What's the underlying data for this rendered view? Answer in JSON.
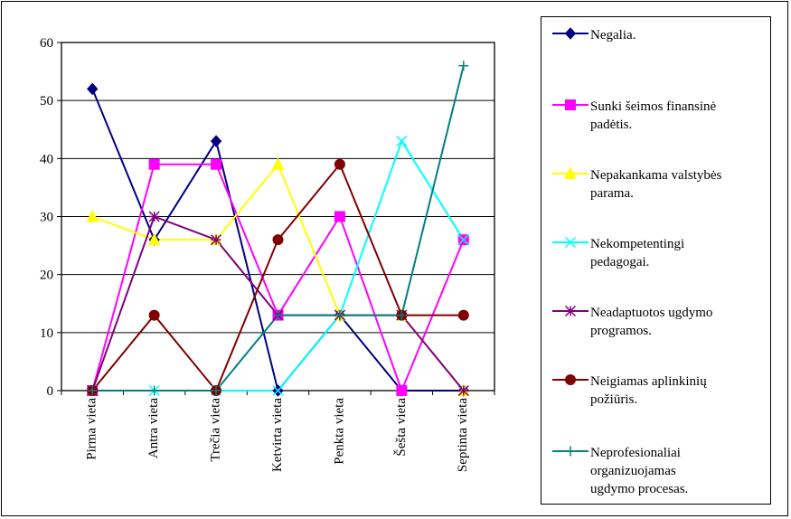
{
  "chart_data": {
    "type": "line",
    "categories": [
      "Pirma vieta",
      "Antra vieta",
      "Trečia vieta",
      "Ketvirta vieta",
      "Penkta vieta",
      "Šešta vieta",
      "Septinta vieta"
    ],
    "ylim": [
      0,
      60
    ],
    "yticks": [
      "0",
      "10",
      "20",
      "30",
      "40",
      "50",
      "60"
    ],
    "grid": true,
    "legend_position": "right",
    "series": [
      {
        "name": "Negalia.",
        "color": "#000080",
        "marker": "diamond",
        "values": [
          52,
          26,
          43,
          0,
          13,
          0,
          0
        ]
      },
      {
        "name": "Sunki šeimos finansinė padėtis.",
        "color": "#ff00ff",
        "marker": "square",
        "values": [
          0,
          39,
          39,
          13,
          30,
          0,
          26
        ]
      },
      {
        "name": "Nepakankama valstybės parama.",
        "color": "#ffff00",
        "marker": "triangle",
        "values": [
          30,
          26,
          26,
          39,
          13,
          13,
          0
        ]
      },
      {
        "name": "Nekompetentingi pedagogai.",
        "color": "#00ffff",
        "marker": "x",
        "values": [
          0,
          0,
          0,
          0,
          13,
          43,
          26
        ]
      },
      {
        "name": "Neadaptuotos ugdymo programos.",
        "color": "#800080",
        "marker": "star",
        "values": [
          0,
          30,
          26,
          13,
          13,
          13,
          0
        ]
      },
      {
        "name": "Neigiamas aplinkinių požiūris.",
        "color": "#800000",
        "marker": "circle",
        "values": [
          0,
          13,
          0,
          26,
          39,
          13,
          13
        ]
      },
      {
        "name": "Neprofesionaliai organizuojamas ugdymo procesas.",
        "color": "#008080",
        "marker": "plus",
        "values": [
          0,
          0,
          0,
          13,
          13,
          13,
          56
        ]
      }
    ]
  },
  "legend": {
    "items": [
      {
        "lines": [
          "Negalia."
        ]
      },
      {
        "lines": [
          "Sunki šeimos finansinė",
          "padėtis."
        ]
      },
      {
        "lines": [
          "Nepakankama valstybės",
          "parama."
        ]
      },
      {
        "lines": [
          "Nekompetentingi",
          "pedagogai."
        ]
      },
      {
        "lines": [
          "Neadaptuotos ugdymo",
          "programos."
        ]
      },
      {
        "lines": [
          "Neigiamas aplinkinių",
          "požiūris."
        ]
      },
      {
        "lines": [
          "Neprofesionaliai",
          "organizuojamas",
          "ugdymo procesas."
        ]
      }
    ]
  }
}
